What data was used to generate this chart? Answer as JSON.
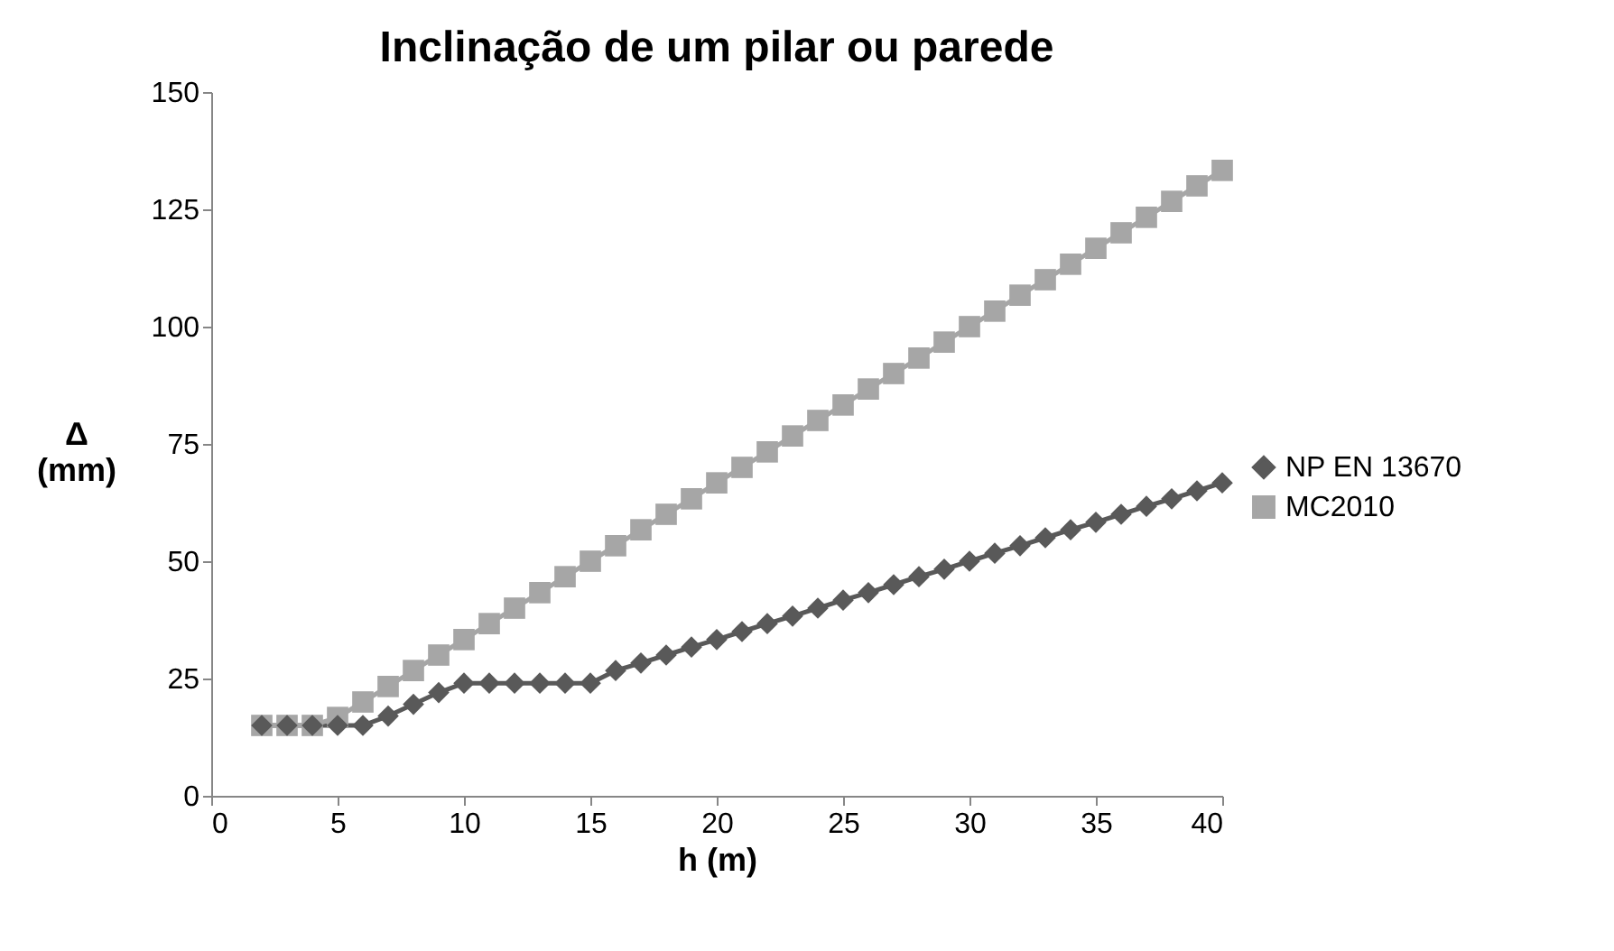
{
  "chart_data": {
    "type": "line",
    "title": "Inclinação de um pilar ou parede",
    "xlabel": "h (m)",
    "ylabel": "Δ\n(mm)",
    "x": [
      2,
      3,
      4,
      5,
      6,
      7,
      8,
      9,
      10,
      11,
      12,
      13,
      14,
      15,
      16,
      17,
      18,
      19,
      20,
      21,
      22,
      23,
      24,
      25,
      26,
      27,
      28,
      29,
      30,
      31,
      32,
      33,
      34,
      35,
      36,
      37,
      38,
      39,
      40
    ],
    "series": [
      {
        "name": "NP EN 13670",
        "color": "#595959",
        "marker": "diamond",
        "values": [
          15,
          15,
          15,
          15,
          15,
          17,
          19.5,
          22,
          24,
          24,
          24,
          24,
          24,
          24,
          26.7,
          28.3,
          30,
          31.7,
          33.3,
          35,
          36.7,
          38.3,
          40,
          41.7,
          43.3,
          45,
          46.7,
          48.3,
          50,
          51.7,
          53.3,
          55,
          56.7,
          58.3,
          60,
          61.7,
          63.3,
          65,
          66.7
        ]
      },
      {
        "name": "MC2010",
        "color": "#a6a6a6",
        "marker": "square",
        "values": [
          15,
          15,
          15,
          16.7,
          20,
          23.3,
          26.7,
          30,
          33.3,
          36.7,
          40,
          43.3,
          46.7,
          50,
          53.3,
          56.7,
          60,
          63.3,
          66.7,
          70,
          73.3,
          76.7,
          80,
          83.3,
          86.7,
          90,
          93.3,
          96.7,
          100,
          103.3,
          106.7,
          110,
          113.3,
          116.7,
          120,
          123.3,
          126.7,
          130,
          133.3
        ]
      }
    ],
    "xlim": [
      0,
      40
    ],
    "xticks": [
      0,
      5,
      10,
      15,
      20,
      25,
      30,
      35,
      40
    ],
    "ylim": [
      0,
      150
    ],
    "yticks": [
      0,
      25,
      50,
      75,
      100,
      125,
      150
    ],
    "grid": false,
    "legend": "right",
    "line_style": "solid"
  }
}
